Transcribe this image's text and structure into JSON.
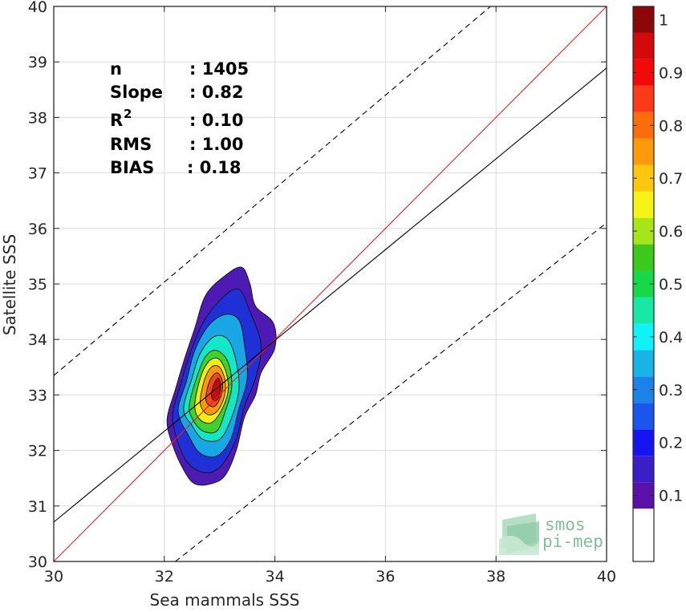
{
  "chart_data": {
    "type": "heatmap",
    "xlabel": "Sea mammals SSS",
    "ylabel": "Satellite SSS",
    "xlim": [
      30,
      40
    ],
    "ylim": [
      30,
      40
    ],
    "x_ticks": [
      "30",
      "32",
      "34",
      "36",
      "38",
      "40"
    ],
    "y_ticks": [
      "30",
      "31",
      "32",
      "33",
      "34",
      "35",
      "36",
      "37",
      "38",
      "39",
      "40"
    ],
    "grid": true,
    "stats": [
      {
        "label": "n",
        "value": ": 1405"
      },
      {
        "label": "Slope",
        "value": ": 0.82"
      },
      {
        "label": "R",
        "sup": "2",
        "value": ": 0.10"
      },
      {
        "label": "RMS",
        "value": ": 1.00"
      },
      {
        "label": "BIAS",
        "value": ": 0.18"
      }
    ],
    "lines": [
      {
        "kind": "identity",
        "color": "#e8211b",
        "points": [
          [
            30,
            30
          ],
          [
            40,
            40
          ]
        ]
      },
      {
        "kind": "regression",
        "color": "#000000",
        "points": [
          [
            30,
            30.71
          ],
          [
            40,
            38.89
          ]
        ]
      },
      {
        "kind": "upper-bound",
        "color": "#000000",
        "dashed": true,
        "points": [
          [
            30,
            33.35
          ],
          [
            37.9,
            40
          ]
        ]
      },
      {
        "kind": "lower-bound",
        "color": "#000000",
        "dashed": true,
        "points": [
          [
            32.2,
            30
          ],
          [
            40,
            36.1
          ]
        ]
      }
    ],
    "density_contours": [
      {
        "level": 0.05,
        "color": "#4d1bb3",
        "points": [
          [
            32.05,
            32.55
          ],
          [
            32.2,
            33.1
          ],
          [
            32.35,
            33.6
          ],
          [
            32.55,
            34.2
          ],
          [
            32.75,
            34.8
          ],
          [
            33.1,
            35.15
          ],
          [
            33.4,
            35.3
          ],
          [
            33.55,
            35.0
          ],
          [
            33.65,
            34.6
          ],
          [
            33.97,
            34.3
          ],
          [
            34.0,
            33.85
          ],
          [
            33.75,
            33.4
          ],
          [
            33.65,
            33.0
          ],
          [
            33.45,
            32.6
          ],
          [
            33.3,
            32.0
          ],
          [
            33.1,
            31.55
          ],
          [
            32.85,
            31.4
          ],
          [
            32.55,
            31.4
          ],
          [
            32.35,
            31.65
          ],
          [
            32.15,
            32.1
          ]
        ]
      },
      {
        "level": 0.15,
        "color": "#1f31d6",
        "points": [
          [
            32.15,
            32.6
          ],
          [
            32.3,
            33.2
          ],
          [
            32.45,
            33.7
          ],
          [
            32.7,
            34.3
          ],
          [
            33.05,
            34.75
          ],
          [
            33.35,
            34.9
          ],
          [
            33.55,
            34.5
          ],
          [
            33.75,
            33.9
          ],
          [
            33.65,
            33.3
          ],
          [
            33.45,
            32.8
          ],
          [
            33.3,
            32.2
          ],
          [
            33.05,
            31.75
          ],
          [
            32.8,
            31.6
          ],
          [
            32.5,
            31.7
          ],
          [
            32.3,
            32.0
          ]
        ]
      },
      {
        "level": 0.3,
        "color": "#18a7e4",
        "points": [
          [
            32.25,
            32.7
          ],
          [
            32.4,
            33.25
          ],
          [
            32.55,
            33.8
          ],
          [
            32.8,
            34.25
          ],
          [
            33.1,
            34.45
          ],
          [
            33.35,
            34.35
          ],
          [
            33.45,
            33.9
          ],
          [
            33.5,
            33.3
          ],
          [
            33.35,
            32.75
          ],
          [
            33.2,
            32.2
          ],
          [
            32.95,
            31.9
          ],
          [
            32.65,
            31.95
          ],
          [
            32.45,
            32.25
          ]
        ]
      },
      {
        "level": 0.45,
        "color": "#12e8c8",
        "points": [
          [
            32.35,
            32.75
          ],
          [
            32.5,
            33.3
          ],
          [
            32.65,
            33.75
          ],
          [
            32.9,
            34.05
          ],
          [
            33.15,
            34.0
          ],
          [
            33.3,
            33.6
          ],
          [
            33.35,
            33.1
          ],
          [
            33.2,
            32.55
          ],
          [
            33.0,
            32.2
          ],
          [
            32.7,
            32.2
          ],
          [
            32.5,
            32.45
          ]
        ]
      },
      {
        "level": 0.55,
        "color": "#3fd12c",
        "points": [
          [
            32.45,
            32.8
          ],
          [
            32.58,
            33.3
          ],
          [
            32.75,
            33.7
          ],
          [
            32.95,
            33.8
          ],
          [
            33.15,
            33.6
          ],
          [
            33.22,
            33.15
          ],
          [
            33.1,
            32.7
          ],
          [
            32.95,
            32.35
          ],
          [
            32.7,
            32.35
          ],
          [
            32.52,
            32.55
          ]
        ]
      },
      {
        "level": 0.65,
        "color": "#f2ee12",
        "points": [
          [
            32.55,
            32.8
          ],
          [
            32.65,
            33.3
          ],
          [
            32.8,
            33.6
          ],
          [
            32.98,
            33.65
          ],
          [
            33.12,
            33.4
          ],
          [
            33.15,
            33.05
          ],
          [
            33.02,
            32.7
          ],
          [
            32.85,
            32.5
          ],
          [
            32.65,
            32.55
          ]
        ]
      },
      {
        "level": 0.75,
        "color": "#fc9a0c",
        "points": [
          [
            32.65,
            32.85
          ],
          [
            32.72,
            33.25
          ],
          [
            32.85,
            33.5
          ],
          [
            33.0,
            33.5
          ],
          [
            33.1,
            33.25
          ],
          [
            33.08,
            32.95
          ],
          [
            32.95,
            32.7
          ],
          [
            32.78,
            32.65
          ]
        ]
      },
      {
        "level": 0.85,
        "color": "#f4461b",
        "points": [
          [
            32.75,
            32.95
          ],
          [
            32.82,
            33.25
          ],
          [
            32.95,
            33.4
          ],
          [
            33.05,
            33.25
          ],
          [
            33.03,
            33.0
          ],
          [
            32.92,
            32.8
          ],
          [
            32.8,
            32.82
          ]
        ]
      },
      {
        "level": 0.95,
        "color": "#c40c0c",
        "points": [
          [
            32.85,
            33.0
          ],
          [
            32.9,
            33.2
          ],
          [
            32.98,
            33.3
          ],
          [
            33.02,
            33.15
          ],
          [
            32.98,
            32.95
          ],
          [
            32.9,
            32.9
          ]
        ]
      }
    ],
    "colorbar": {
      "ticks": [
        "0.1",
        "0.2",
        "0.3",
        "0.4",
        "0.5",
        "0.6",
        "0.7",
        "0.8",
        "0.9",
        "1"
      ],
      "range": [
        0,
        1
      ],
      "bins": [
        {
          "lo": 0.0,
          "hi": 0.1,
          "color": "#ffffff"
        },
        {
          "lo": 0.1,
          "hi": 0.15,
          "color": "#5a11a8"
        },
        {
          "lo": 0.15,
          "hi": 0.2,
          "color": "#3a1fc8"
        },
        {
          "lo": 0.2,
          "hi": 0.25,
          "color": "#1414f0"
        },
        {
          "lo": 0.25,
          "hi": 0.3,
          "color": "#1c55ec"
        },
        {
          "lo": 0.3,
          "hi": 0.35,
          "color": "#1b83e8"
        },
        {
          "lo": 0.35,
          "hi": 0.4,
          "color": "#18b4e6"
        },
        {
          "lo": 0.4,
          "hi": 0.45,
          "color": "#0ef2f8"
        },
        {
          "lo": 0.45,
          "hi": 0.5,
          "color": "#18e8a4"
        },
        {
          "lo": 0.5,
          "hi": 0.55,
          "color": "#18d84a"
        },
        {
          "lo": 0.55,
          "hi": 0.6,
          "color": "#3bc91b"
        },
        {
          "lo": 0.6,
          "hi": 0.65,
          "color": "#a6e516"
        },
        {
          "lo": 0.65,
          "hi": 0.7,
          "color": "#f6f416"
        },
        {
          "lo": 0.7,
          "hi": 0.75,
          "color": "#fcc70c"
        },
        {
          "lo": 0.75,
          "hi": 0.8,
          "color": "#fc9a0c"
        },
        {
          "lo": 0.8,
          "hi": 0.85,
          "color": "#fc6d0c"
        },
        {
          "lo": 0.85,
          "hi": 0.9,
          "color": "#fb3a1a"
        },
        {
          "lo": 0.9,
          "hi": 0.95,
          "color": "#f20a0a"
        },
        {
          "lo": 0.95,
          "hi": 1.0,
          "color": "#d40a0a"
        },
        {
          "lo": 1.0,
          "hi": 1.05,
          "color": "#8c0707"
        }
      ]
    }
  },
  "logo": {
    "line1": "smos",
    "line2": "pi-mep"
  }
}
